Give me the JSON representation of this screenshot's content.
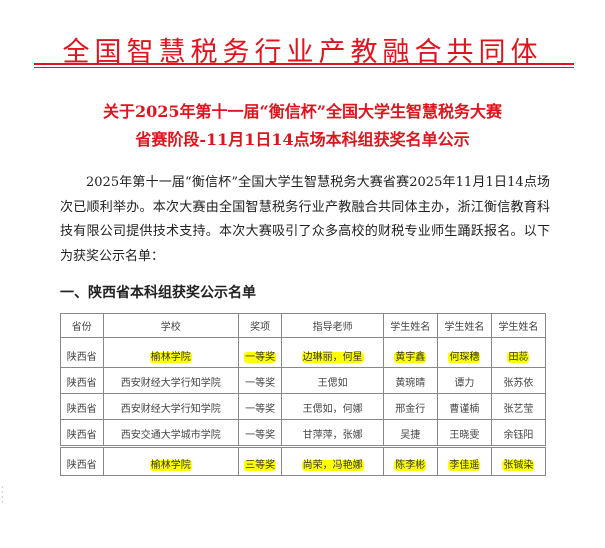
{
  "header": "全国智慧税务行业产教融合共同体",
  "title": {
    "line1": "关于2025年第十一届“衡信杯”全国大学生智慧税务大赛",
    "line2": "省赛阶段-11月1日14点场本科组获奖名单公示"
  },
  "body": "2025年第十一届“衡信杯”全国大学生智慧税务大赛省赛2025年11月1日14点场次已顺利举办。本次大赛由全国智慧税务行业产教融合共同体主办，浙江衡信教育科技有限公司提供技术支持。本次大赛吸引了众多高校的财税专业师生踊跃报名。以下为获奖公示名单：",
  "section": "一、陕西省本科组获奖公示名单",
  "table": {
    "headers": [
      "省份",
      "学校",
      "奖项",
      "指导老师",
      "学生姓名",
      "学生姓名",
      "学生姓名"
    ],
    "rows": [
      {
        "cells": [
          "陕西省",
          "榆林学院",
          "一等奖",
          "边琳丽，何星",
          "黄宇鑫",
          "何琛穗",
          "田蕊"
        ],
        "highlight": true
      },
      {
        "cells": [
          "陕西省",
          "西安财经大学行知学院",
          "一等奖",
          "王偲如",
          "黄琬晴",
          "谭力",
          "张苏依"
        ],
        "highlight": false
      },
      {
        "cells": [
          "陕西省",
          "西安财经大学行知学院",
          "一等奖",
          "王偲如，何娜",
          "邢金行",
          "曹谨楠",
          "张艺莹"
        ],
        "highlight": false
      },
      {
        "cells": [
          "陕西省",
          "西安交通大学城市学院",
          "一等奖",
          "甘萍萍，张娜",
          "吴捷",
          "王晓雯",
          "余钰阳"
        ],
        "highlight": false
      }
    ],
    "row2": {
      "cells": [
        "陕西省",
        "榆林学院",
        "三等奖",
        "尚荣，冯艳娜",
        "陈李彬",
        "李佳遥",
        "张铖染"
      ],
      "highlight": true
    }
  },
  "colors": {
    "red": "#e0141e",
    "highlight": "#ffff00"
  }
}
